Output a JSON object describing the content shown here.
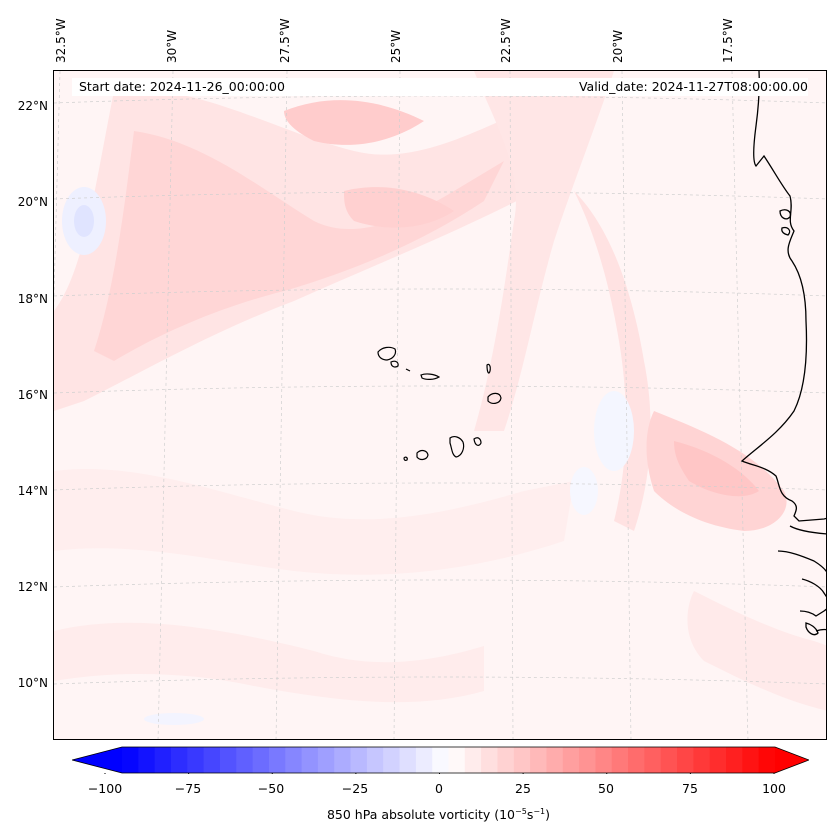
{
  "map": {
    "start_date": "Start date: 2024-11-26_00:00:00",
    "valid_date": "Valid_date: 2024-11-27T08:00:00.00",
    "lon_labels": [
      "32.5°W",
      "30°W",
      "27.5°W",
      "25°W",
      "22.5°W",
      "20°W",
      "17.5°W"
    ],
    "lat_labels": [
      "22°N",
      "20°N",
      "18°N",
      "16°N",
      "14°N",
      "12°N",
      "10°N"
    ],
    "extent": {
      "lon_min": -32.7,
      "lon_max": -16.3,
      "lat_min": 8.9,
      "lat_max": 22.7
    },
    "field": "850 hPa absolute vorticity",
    "features": [
      "Cape Verde islands",
      "West African coastline"
    ]
  },
  "colorbar": {
    "label_prefix": "850 hPa absolute vorticity (10",
    "label_exp1": "−5",
    "label_mid": "s",
    "label_exp2": "−1",
    "label_suffix": ")",
    "ticks": [
      "−100",
      "−75",
      "−50",
      "−25",
      "0",
      "25",
      "50",
      "75",
      "100"
    ],
    "min": -100,
    "max": 100,
    "colormap": "bwr",
    "colors": {
      "negative": "#0000ff",
      "zero": "#ffffff",
      "positive": "#ff0000"
    }
  }
}
